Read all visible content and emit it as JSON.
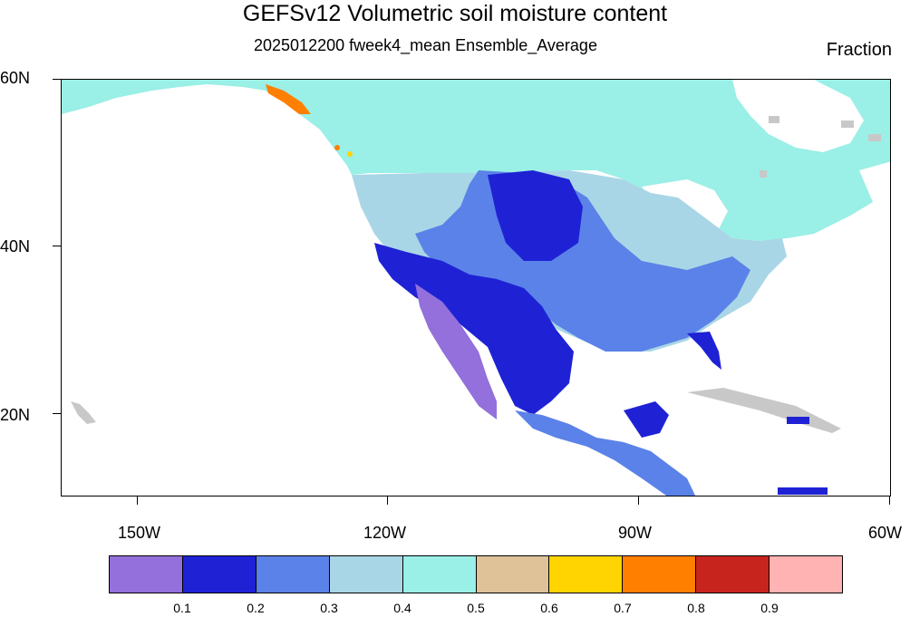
{
  "header": {
    "title": "GEFSv12 Volumetric soil moisture content",
    "subtitle": "2025012200 fweek4_mean Ensemble_Average",
    "units": "Fraction"
  },
  "axes": {
    "lat_labels": [
      "60N",
      "40N",
      "20N"
    ],
    "lon_labels": [
      "150W",
      "120W",
      "90W",
      "60W"
    ]
  },
  "legend": {
    "colors": [
      "#9370db",
      "#1e22d4",
      "#5b82e8",
      "#a9d6e6",
      "#9aefe6",
      "#dfc297",
      "#ffd400",
      "#ff7f00",
      "#c8241e",
      "#ffb3b3"
    ],
    "labels": [
      "0.1",
      "0.2",
      "0.3",
      "0.4",
      "0.5",
      "0.6",
      "0.7",
      "0.8",
      "0.9"
    ]
  },
  "map": {
    "missing_color": "#c8c8c8",
    "background_color": "#ffffff"
  }
}
